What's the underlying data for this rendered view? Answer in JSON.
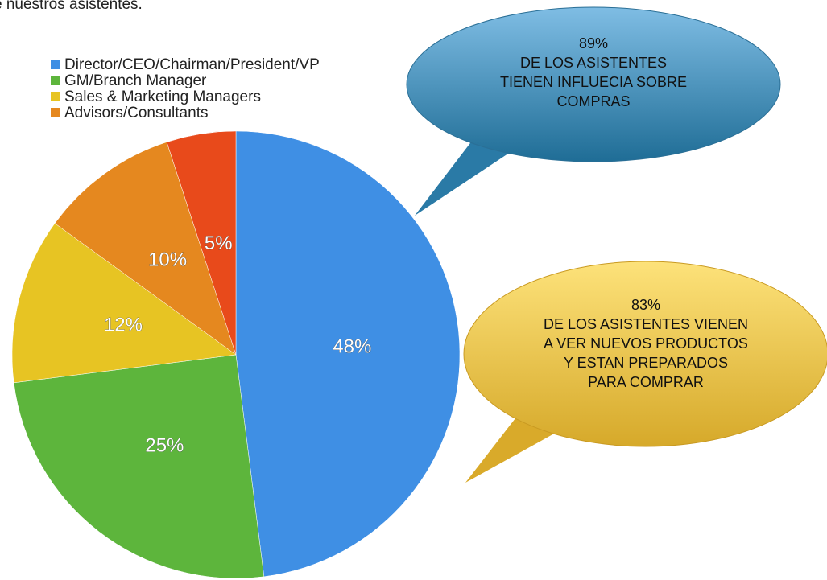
{
  "chart_data": {
    "type": "pie",
    "title": "e nuestros asistentes.",
    "categories": [
      "Director/CEO/Chairman/President/VP",
      "GM/Branch Manager",
      "Sales & Marketing Managers",
      "Advisors/Consultants",
      null
    ],
    "values": [
      48,
      25,
      12,
      10,
      5
    ],
    "value_labels": [
      "48%",
      "25%",
      "12%",
      "10%",
      "5%"
    ],
    "colors": [
      "#3f8fe4",
      "#5db53c",
      "#e7c423",
      "#e5881f",
      "#e84a1b"
    ],
    "annotations": [
      {
        "lines": [
          "89%",
          "DE LOS ASISTENTES",
          "TIENEN INFLUECIA SOBRE",
          "COMPRAS"
        ]
      },
      {
        "lines": [
          "83%",
          "DE LOS ASISTENTES VIENEN",
          "A VER NUEVOS PRODUCTOS",
          "Y ESTAN PREPARADOS",
          "PARA COMPRAR"
        ]
      }
    ]
  }
}
